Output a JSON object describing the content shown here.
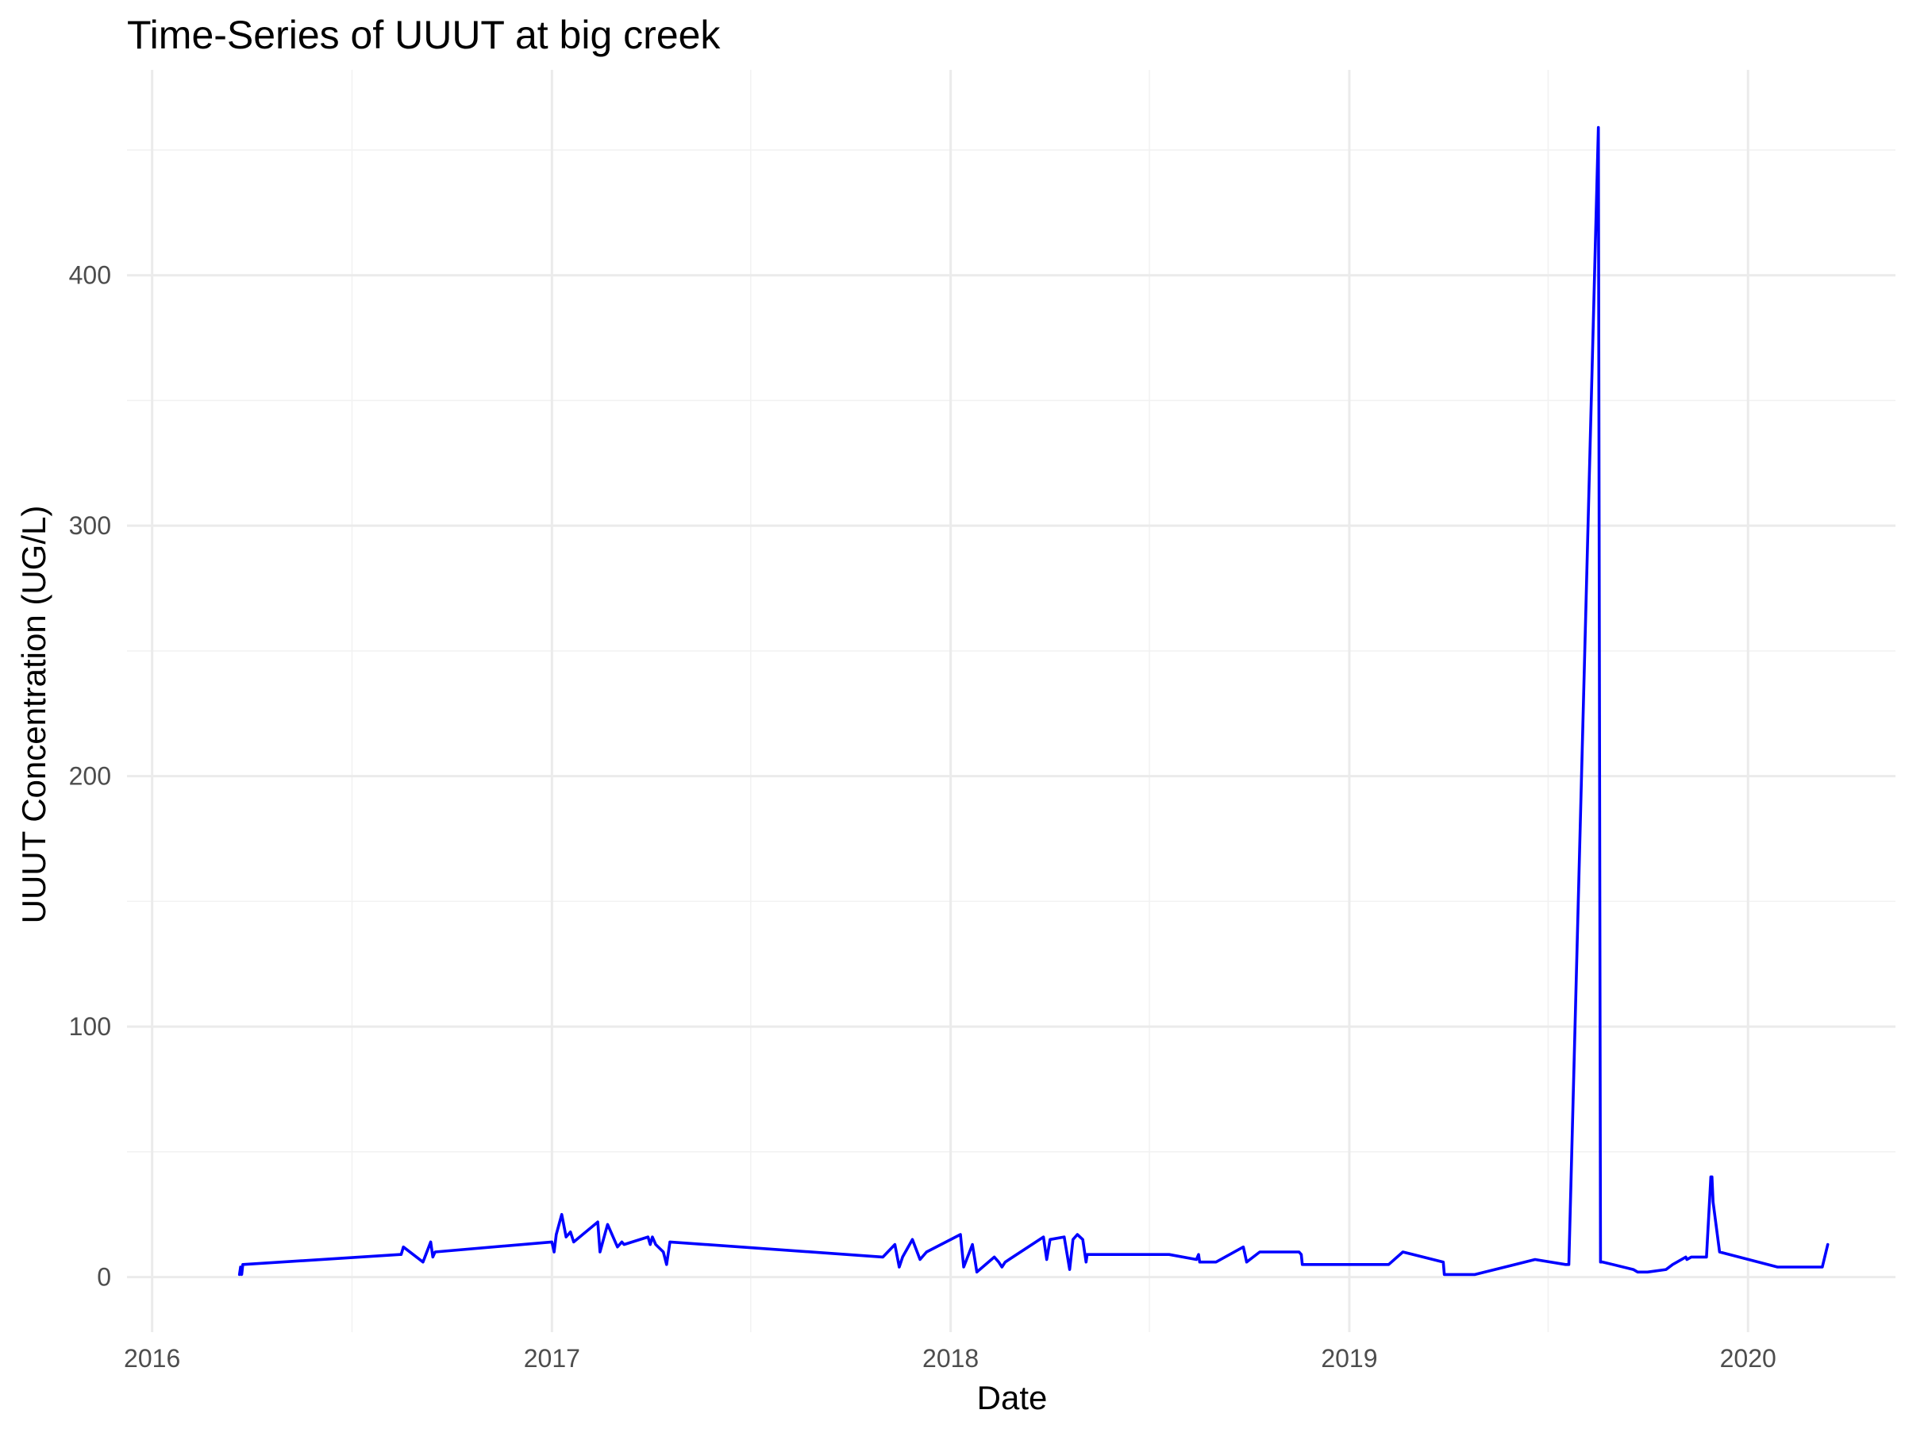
{
  "chart_data": {
    "type": "line",
    "title": "Time-Series of UUUT at big creek",
    "xlabel": "Date",
    "ylabel": "UUUT Concentration (UG/L)",
    "x_ticks": [
      "2016",
      "2017",
      "2018",
      "2019",
      "2020"
    ],
    "y_ticks": [
      "0",
      "100",
      "200",
      "300",
      "400"
    ],
    "xlim": [
      "2015-12-09",
      "2020-05-15"
    ],
    "ylim": [
      -22,
      482
    ],
    "grid": true,
    "legend": "none",
    "colors": {
      "series": "#0000ff"
    },
    "series": [
      {
        "x": [
          "2016-03-21",
          "2016-03-22",
          "2016-03-23",
          "2016-03-24",
          "2016-08-15",
          "2016-08-16",
          "2016-08-18",
          "2016-09-05",
          "2016-09-12",
          "2016-09-14",
          "2016-09-16",
          "2017-01-01",
          "2017-01-03",
          "2017-01-05",
          "2017-01-10",
          "2017-01-14",
          "2017-01-18",
          "2017-01-21",
          "2017-02-12",
          "2017-02-14",
          "2017-02-19",
          "2017-02-21",
          "2017-03-02",
          "2017-03-06",
          "2017-03-08",
          "2017-03-30",
          "2017-04-01",
          "2017-04-03",
          "2017-04-06",
          "2017-04-13",
          "2017-04-16",
          "2017-04-19",
          "2017-10-31",
          "2017-11-11",
          "2017-11-15",
          "2017-11-18",
          "2017-11-27",
          "2017-12-04",
          "2017-12-10",
          "2018-01-10",
          "2018-01-13",
          "2018-01-21",
          "2018-01-25",
          "2018-02-10",
          "2018-02-14",
          "2018-02-17",
          "2018-02-20",
          "2018-03-27",
          "2018-03-30",
          "2018-04-02",
          "2018-04-15",
          "2018-04-20",
          "2018-04-23",
          "2018-04-27",
          "2018-05-02",
          "2018-05-05",
          "2018-05-06",
          "2018-05-07",
          "2018-05-08",
          "2018-07-20",
          "2018-08-14",
          "2018-08-16",
          "2018-08-17",
          "2018-09-01",
          "2018-09-26",
          "2018-09-29",
          "2018-10-11",
          "2018-11-16",
          "2018-11-18",
          "2018-11-19",
          "2019-02-06",
          "2019-02-19",
          "2019-03-28",
          "2019-03-29",
          "2019-04-26",
          "2019-06-20",
          "2019-07-18",
          "2019-07-21",
          "2019-08-17",
          "2019-08-19",
          "2019-08-21",
          "2019-09-18",
          "2019-09-22",
          "2019-10-01",
          "2019-10-18",
          "2019-10-24",
          "2019-11-05",
          "2019-11-06",
          "2019-11-10",
          "2019-11-24",
          "2019-11-28",
          "2019-11-29",
          "2019-11-30",
          "2019-12-06",
          "2020-01-28",
          "2020-02-24",
          "2020-03-06",
          "2020-03-09",
          "2020-03-14"
        ],
        "y": [
          1,
          4,
          1,
          5,
          9,
          9,
          12,
          6,
          14,
          8,
          10,
          14,
          10,
          17,
          25,
          16,
          18,
          14,
          22,
          10,
          18,
          21,
          12,
          14,
          13,
          16,
          13,
          16,
          13,
          10,
          5,
          14,
          8,
          13,
          4,
          8,
          15,
          7,
          10,
          17,
          4,
          13,
          2,
          8,
          6,
          4,
          6,
          16,
          7,
          15,
          16,
          3,
          15,
          17,
          15,
          6,
          9,
          9,
          9,
          9,
          7,
          9,
          6,
          6,
          12,
          6,
          10,
          10,
          9,
          5,
          5,
          10,
          6,
          1,
          1,
          7,
          5,
          5,
          459,
          6,
          6,
          3,
          2,
          2,
          3,
          5,
          8,
          7,
          8,
          8,
          40,
          40,
          30,
          10,
          4,
          4,
          4,
          4,
          13
        ]
      }
    ]
  }
}
